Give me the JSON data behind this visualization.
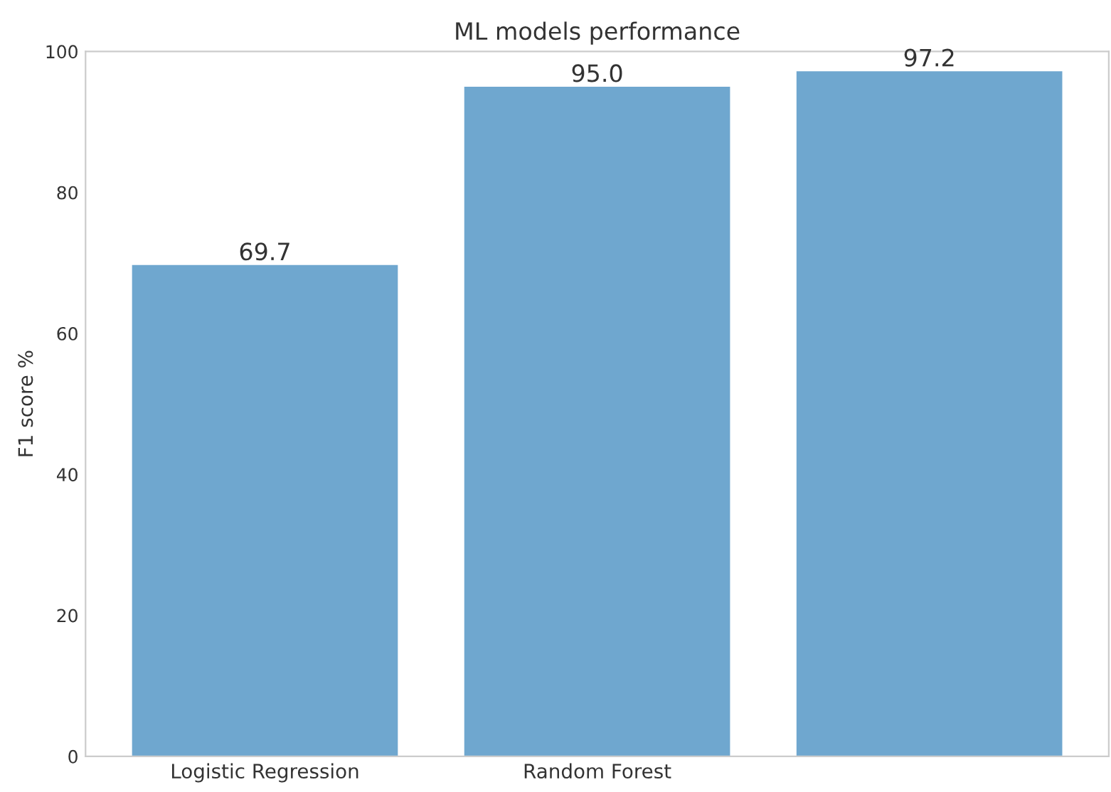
{
  "chart_data": {
    "type": "bar",
    "title": "ML models performance",
    "ylabel": "F1 score %",
    "categories": [
      "Logistic Regression",
      "Random Forest",
      null
    ],
    "values": [
      69.7,
      95.0,
      97.2
    ],
    "value_labels": [
      "69.7",
      "95.0",
      "97.2"
    ],
    "color": "#6fa7cf",
    "ylim": [
      0,
      100
    ],
    "yticks": [
      0,
      20,
      40,
      60,
      80,
      100
    ],
    "grid": false
  }
}
